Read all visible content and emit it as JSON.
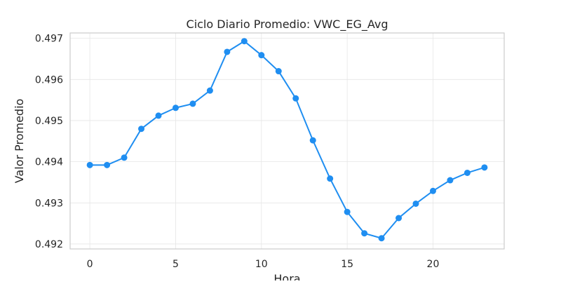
{
  "chart_data": {
    "type": "line",
    "title": "Ciclo Diario Promedio: VWC_EG_Avg",
    "xlabel": "Hora",
    "ylabel": "Valor Promedio",
    "xlim": [
      -1.15,
      24.15
    ],
    "ylim": [
      0.49188,
      0.49713
    ],
    "xticks": [
      0,
      5,
      10,
      15,
      20
    ],
    "yticks": [
      0.492,
      0.493,
      0.494,
      0.495,
      0.496,
      0.497
    ],
    "ytick_labels": [
      "0.492",
      "0.493",
      "0.494",
      "0.495",
      "0.496",
      "0.497"
    ],
    "grid": true,
    "color": "#1f8ef1",
    "x": [
      0,
      1,
      2,
      3,
      4,
      5,
      6,
      7,
      8,
      9,
      10,
      11,
      12,
      13,
      14,
      15,
      16,
      17,
      18,
      19,
      20,
      21,
      22,
      23
    ],
    "values": [
      0.49392,
      0.49392,
      0.4941,
      0.4948,
      0.49512,
      0.49531,
      0.49541,
      0.49573,
      0.49667,
      0.49693,
      0.49659,
      0.4962,
      0.49554,
      0.49452,
      0.49359,
      0.49278,
      0.49226,
      0.49214,
      0.49263,
      0.49298,
      0.49329,
      0.49355,
      0.49373,
      0.49386
    ]
  }
}
